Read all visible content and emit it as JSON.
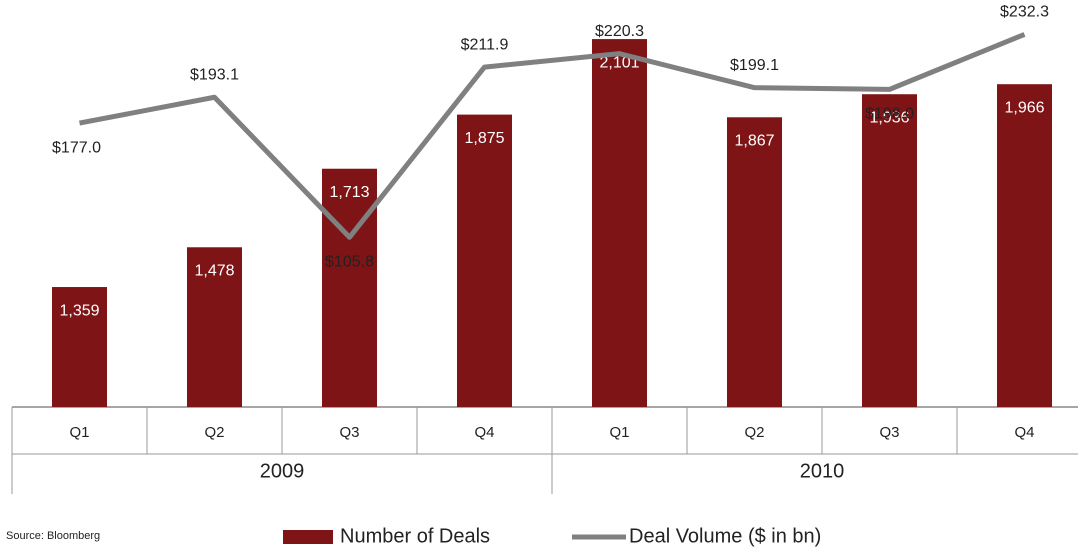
{
  "chart_data": {
    "type": "bar_line",
    "categories": [
      "Q1",
      "Q2",
      "Q3",
      "Q4",
      "Q1",
      "Q2",
      "Q3",
      "Q4"
    ],
    "group_labels": [
      "2009",
      "2010"
    ],
    "series": [
      {
        "name": "Number of Deals",
        "type": "bar",
        "color": "#7e1416",
        "values": [
          1359,
          1478,
          1713,
          1875,
          2101,
          1867,
          1936,
          1966
        ],
        "value_labels": [
          "1,359",
          "1,478",
          "1,713",
          "1,875",
          "2,101",
          "1,867",
          "1,936",
          "1,966"
        ]
      },
      {
        "name": "Deal Volume ($ in bn)",
        "type": "line",
        "axis": "y2",
        "color": "#808080",
        "values": [
          177.0,
          193.1,
          105.8,
          211.9,
          220.3,
          199.1,
          198.0,
          232.3
        ],
        "value_labels": [
          "$177.0",
          "$193.1",
          "$105.8",
          "$211.9",
          "$220.3",
          "$199.1",
          "$198.0",
          "$232.3"
        ]
      }
    ],
    "ylim": [
      1000,
      2200
    ],
    "y2lim": [
      0,
      250
    ],
    "source": "Source: Bloomberg"
  }
}
